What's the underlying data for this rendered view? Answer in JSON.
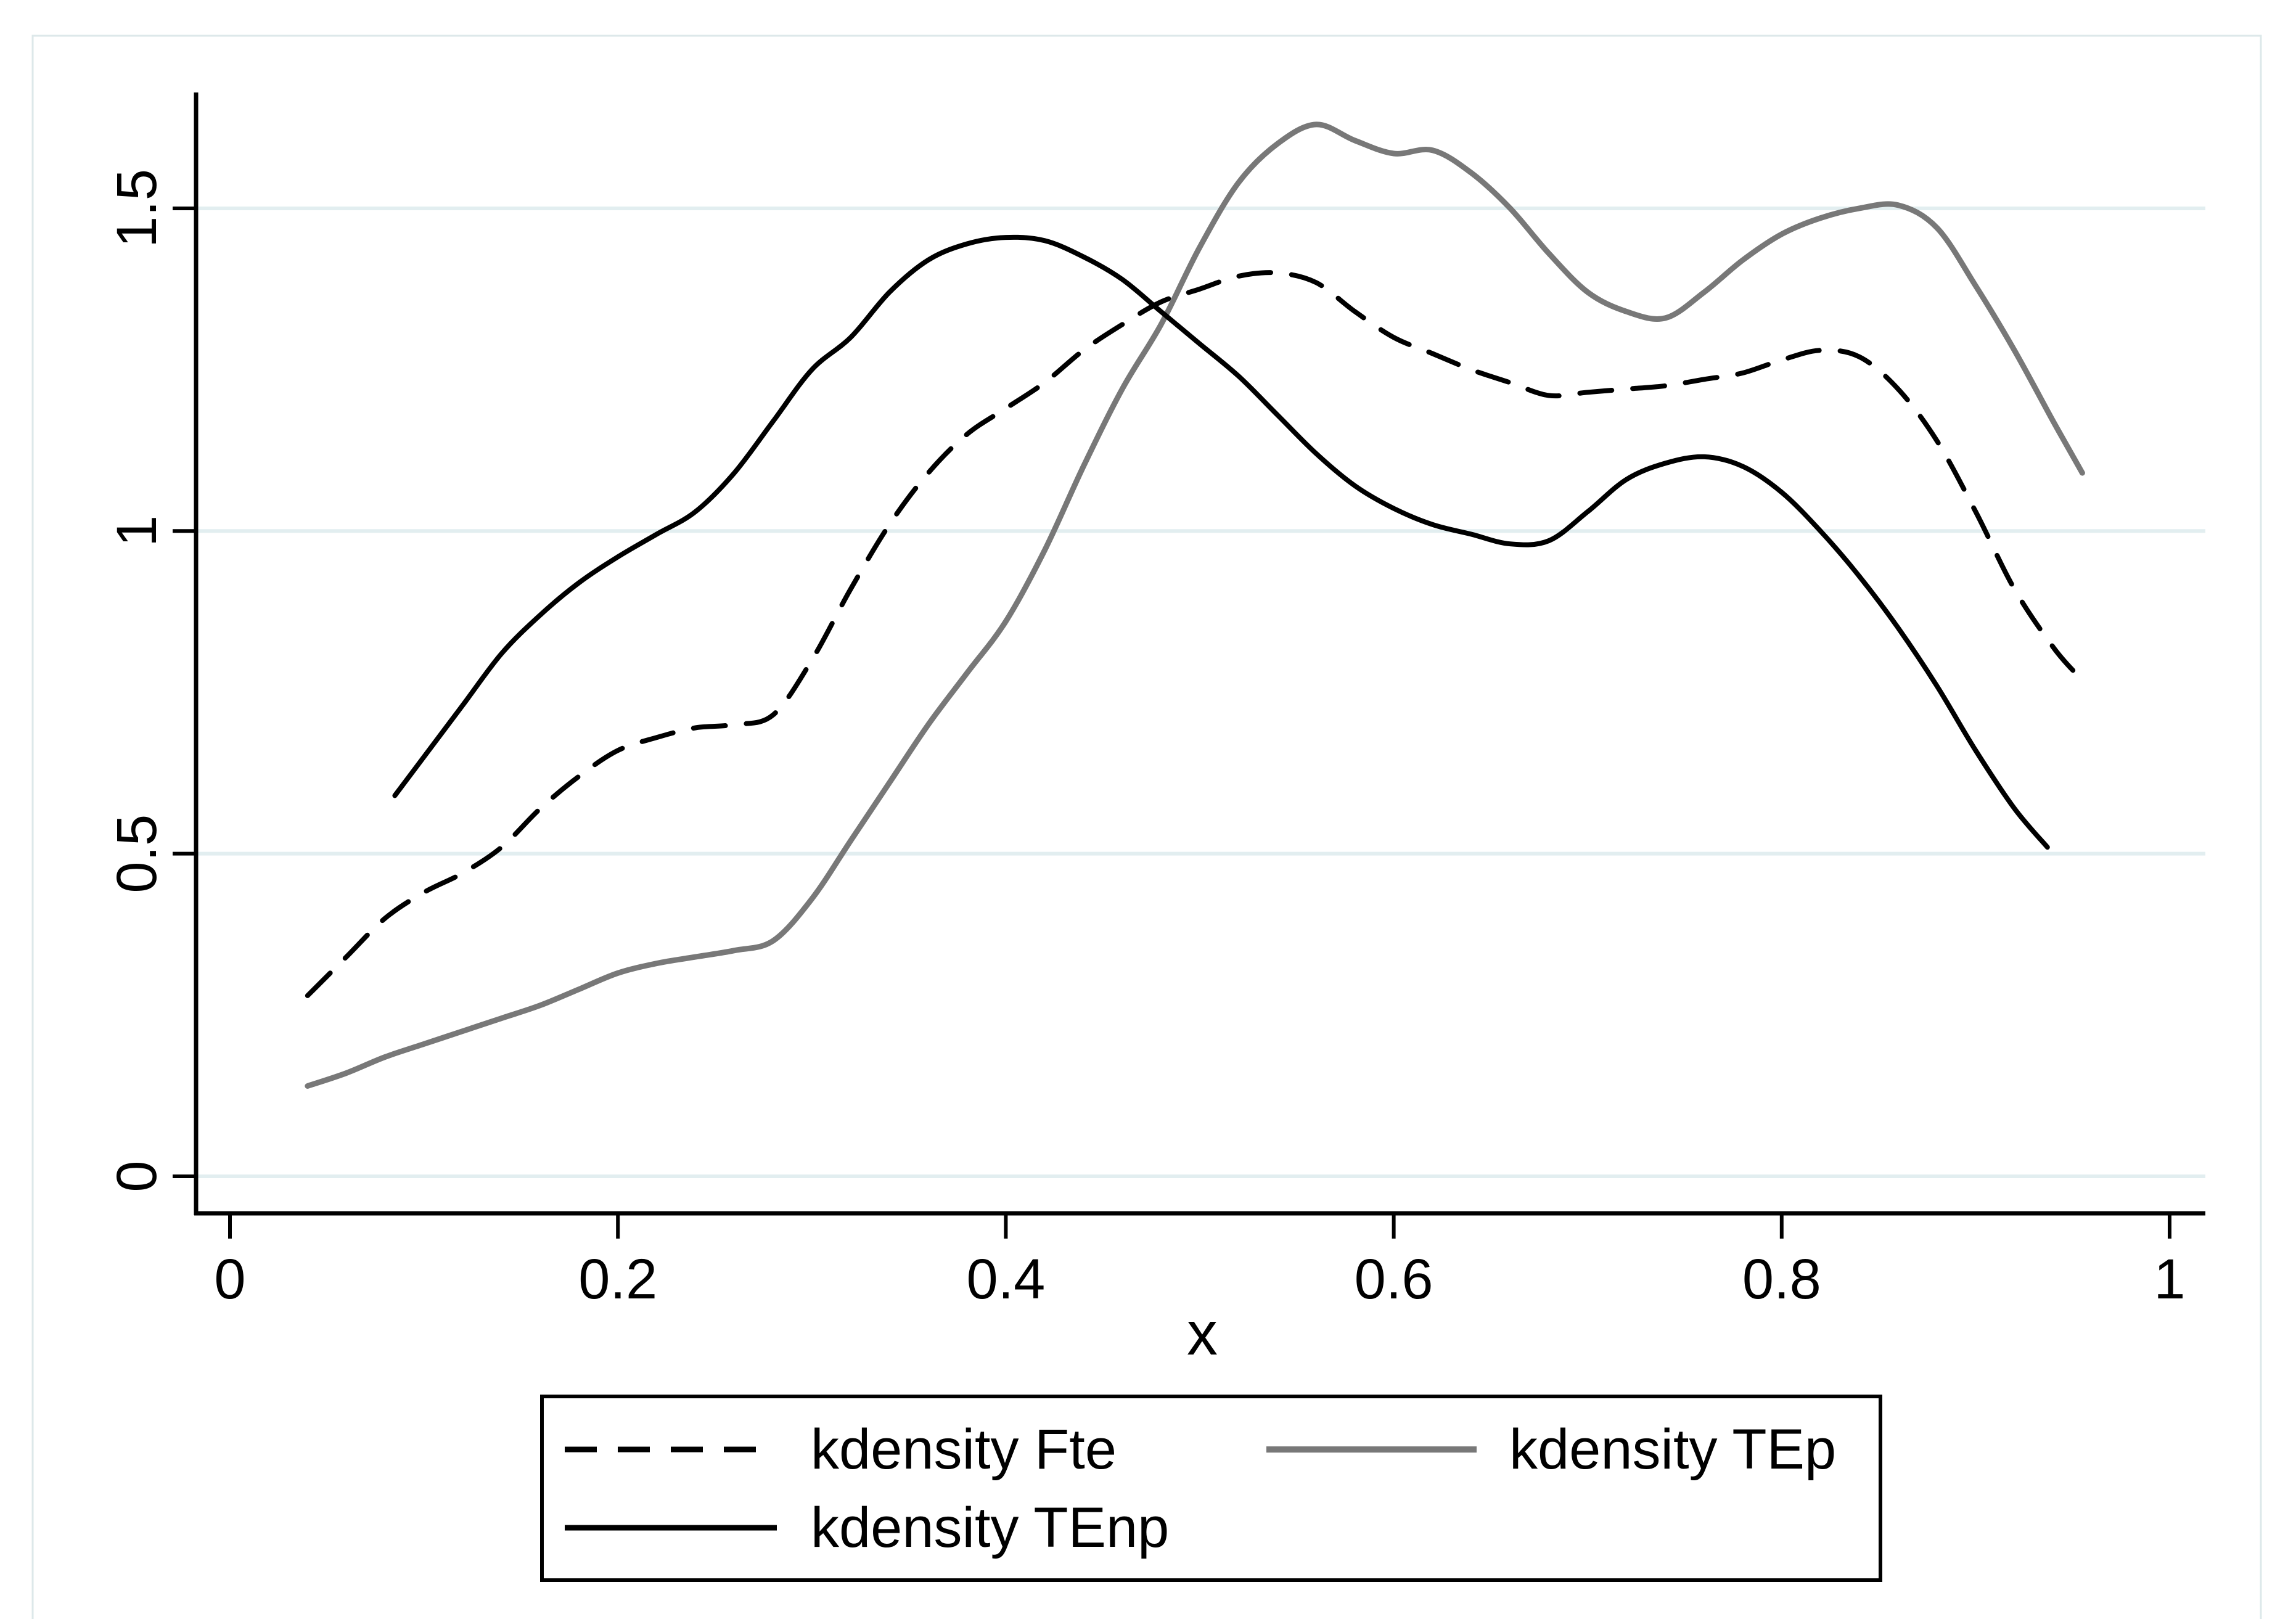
{
  "figure": {
    "background": "#ffffff",
    "outer_border_color": "#dde8ea"
  },
  "chart_data": {
    "type": "line",
    "title": "",
    "xlabel": "x",
    "ylabel": "",
    "xlim": [
      0,
      1.02
    ],
    "ylim": [
      0,
      1.72
    ],
    "grid": "horizontal",
    "gridline_color": "#e2eef0",
    "axis_color": "#000000",
    "legend_position": "bottom",
    "x_ticks": [
      {
        "value": 0.0,
        "label": "0"
      },
      {
        "value": 0.2,
        "label": "0.2"
      },
      {
        "value": 0.4,
        "label": "0.4"
      },
      {
        "value": 0.6,
        "label": "0.6"
      },
      {
        "value": 0.8,
        "label": "0.8"
      },
      {
        "value": 1.0,
        "label": "1"
      }
    ],
    "y_ticks": [
      {
        "value": 0.0,
        "label": "0"
      },
      {
        "value": 0.5,
        "label": "0.5"
      },
      {
        "value": 1.0,
        "label": "1"
      },
      {
        "value": 1.5,
        "label": "1.5"
      }
    ],
    "series": [
      {
        "name": "kdensity Fte",
        "color": "#000000",
        "style": "dashed",
        "width": 8,
        "points": [
          [
            0.04,
            0.28
          ],
          [
            0.06,
            0.34
          ],
          [
            0.08,
            0.4
          ],
          [
            0.1,
            0.44
          ],
          [
            0.12,
            0.47
          ],
          [
            0.14,
            0.51
          ],
          [
            0.16,
            0.57
          ],
          [
            0.18,
            0.62
          ],
          [
            0.2,
            0.66
          ],
          [
            0.22,
            0.68
          ],
          [
            0.24,
            0.695
          ],
          [
            0.26,
            0.7
          ],
          [
            0.28,
            0.715
          ],
          [
            0.3,
            0.8
          ],
          [
            0.32,
            0.91
          ],
          [
            0.34,
            1.01
          ],
          [
            0.36,
            1.09
          ],
          [
            0.38,
            1.15
          ],
          [
            0.4,
            1.19
          ],
          [
            0.42,
            1.23
          ],
          [
            0.44,
            1.28
          ],
          [
            0.46,
            1.32
          ],
          [
            0.48,
            1.355
          ],
          [
            0.5,
            1.375
          ],
          [
            0.52,
            1.395
          ],
          [
            0.54,
            1.4
          ],
          [
            0.56,
            1.385
          ],
          [
            0.58,
            1.34
          ],
          [
            0.6,
            1.3
          ],
          [
            0.62,
            1.275
          ],
          [
            0.64,
            1.25
          ],
          [
            0.66,
            1.23
          ],
          [
            0.68,
            1.21
          ],
          [
            0.7,
            1.215
          ],
          [
            0.72,
            1.22
          ],
          [
            0.74,
            1.225
          ],
          [
            0.76,
            1.235
          ],
          [
            0.78,
            1.245
          ],
          [
            0.8,
            1.265
          ],
          [
            0.82,
            1.28
          ],
          [
            0.84,
            1.27
          ],
          [
            0.86,
            1.22
          ],
          [
            0.88,
            1.14
          ],
          [
            0.9,
            1.03
          ],
          [
            0.92,
            0.91
          ],
          [
            0.94,
            0.82
          ],
          [
            0.953,
            0.775
          ]
        ]
      },
      {
        "name": "kdensity TEp",
        "color": "#787878",
        "style": "solid",
        "width": 9,
        "points": [
          [
            0.04,
            0.14
          ],
          [
            0.06,
            0.16
          ],
          [
            0.08,
            0.185
          ],
          [
            0.1,
            0.205
          ],
          [
            0.12,
            0.225
          ],
          [
            0.14,
            0.245
          ],
          [
            0.16,
            0.265
          ],
          [
            0.18,
            0.29
          ],
          [
            0.2,
            0.315
          ],
          [
            0.22,
            0.33
          ],
          [
            0.24,
            0.34
          ],
          [
            0.26,
            0.35
          ],
          [
            0.28,
            0.365
          ],
          [
            0.3,
            0.43
          ],
          [
            0.32,
            0.52
          ],
          [
            0.34,
            0.61
          ],
          [
            0.36,
            0.7
          ],
          [
            0.38,
            0.78
          ],
          [
            0.4,
            0.86
          ],
          [
            0.42,
            0.97
          ],
          [
            0.44,
            1.1
          ],
          [
            0.46,
            1.22
          ],
          [
            0.48,
            1.32
          ],
          [
            0.5,
            1.44
          ],
          [
            0.52,
            1.54
          ],
          [
            0.54,
            1.6
          ],
          [
            0.56,
            1.63
          ],
          [
            0.58,
            1.605
          ],
          [
            0.6,
            1.585
          ],
          [
            0.62,
            1.59
          ],
          [
            0.64,
            1.555
          ],
          [
            0.66,
            1.5
          ],
          [
            0.68,
            1.43
          ],
          [
            0.7,
            1.37
          ],
          [
            0.72,
            1.34
          ],
          [
            0.74,
            1.33
          ],
          [
            0.76,
            1.37
          ],
          [
            0.78,
            1.42
          ],
          [
            0.8,
            1.46
          ],
          [
            0.82,
            1.485
          ],
          [
            0.84,
            1.5
          ],
          [
            0.86,
            1.505
          ],
          [
            0.88,
            1.47
          ],
          [
            0.9,
            1.38
          ],
          [
            0.92,
            1.28
          ],
          [
            0.94,
            1.17
          ],
          [
            0.955,
            1.09
          ]
        ]
      },
      {
        "name": "kdensity TEnp",
        "color": "#000000",
        "style": "solid",
        "width": 8,
        "points": [
          [
            0.085,
            0.59
          ],
          [
            0.1,
            0.65
          ],
          [
            0.12,
            0.73
          ],
          [
            0.14,
            0.81
          ],
          [
            0.16,
            0.87
          ],
          [
            0.18,
            0.92
          ],
          [
            0.2,
            0.96
          ],
          [
            0.22,
            0.995
          ],
          [
            0.24,
            1.03
          ],
          [
            0.26,
            1.09
          ],
          [
            0.28,
            1.17
          ],
          [
            0.3,
            1.25
          ],
          [
            0.32,
            1.3
          ],
          [
            0.34,
            1.37
          ],
          [
            0.36,
            1.42
          ],
          [
            0.38,
            1.445
          ],
          [
            0.4,
            1.455
          ],
          [
            0.42,
            1.45
          ],
          [
            0.44,
            1.425
          ],
          [
            0.46,
            1.39
          ],
          [
            0.48,
            1.34
          ],
          [
            0.5,
            1.29
          ],
          [
            0.52,
            1.24
          ],
          [
            0.54,
            1.18
          ],
          [
            0.56,
            1.12
          ],
          [
            0.58,
            1.07
          ],
          [
            0.6,
            1.035
          ],
          [
            0.62,
            1.01
          ],
          [
            0.64,
            0.995
          ],
          [
            0.66,
            0.98
          ],
          [
            0.68,
            0.985
          ],
          [
            0.7,
            1.03
          ],
          [
            0.72,
            1.08
          ],
          [
            0.74,
            1.105
          ],
          [
            0.76,
            1.115
          ],
          [
            0.78,
            1.1
          ],
          [
            0.8,
            1.06
          ],
          [
            0.82,
            1.0
          ],
          [
            0.84,
            0.93
          ],
          [
            0.86,
            0.85
          ],
          [
            0.88,
            0.76
          ],
          [
            0.9,
            0.66
          ],
          [
            0.92,
            0.57
          ],
          [
            0.937,
            0.51
          ]
        ]
      }
    ]
  },
  "legend": {
    "entries": [
      {
        "label": "kdensity Fte"
      },
      {
        "label": "kdensity TEp"
      },
      {
        "label": "kdensity TEnp"
      }
    ]
  }
}
